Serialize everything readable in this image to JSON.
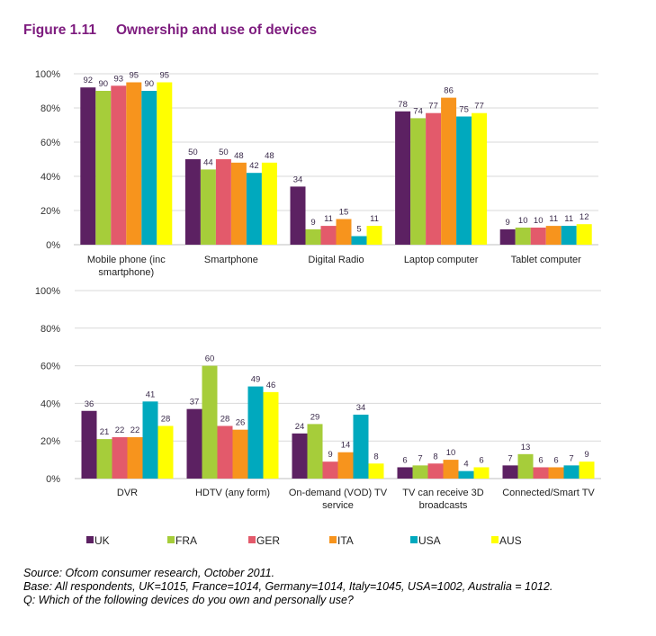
{
  "figure": {
    "number": "Figure 1.11",
    "title": "Ownership and use of devices"
  },
  "chart_data": [
    {
      "type": "bar",
      "ylim": [
        0,
        100
      ],
      "yticks": [
        "0%",
        "20%",
        "40%",
        "60%",
        "80%",
        "100%"
      ],
      "grid": true,
      "categories": [
        [
          "Mobile phone (inc",
          "smartphone)"
        ],
        [
          "Smartphone"
        ],
        [
          "Digital Radio"
        ],
        [
          "Laptop computer"
        ],
        [
          "Tablet computer"
        ]
      ],
      "series": [
        {
          "name": "UK",
          "color": "#5c2162",
          "values": [
            92,
            50,
            34,
            78,
            9
          ]
        },
        {
          "name": "FRA",
          "color": "#a6cd3a",
          "values": [
            90,
            44,
            9,
            74,
            10
          ]
        },
        {
          "name": "GER",
          "color": "#e35a6b",
          "values": [
            93,
            50,
            11,
            77,
            10
          ]
        },
        {
          "name": "ITA",
          "color": "#f7941d",
          "values": [
            95,
            48,
            15,
            86,
            11
          ]
        },
        {
          "name": "USA",
          "color": "#00a9be",
          "values": [
            90,
            42,
            5,
            75,
            11
          ]
        },
        {
          "name": "AUS",
          "color": "#ffff00",
          "values": [
            95,
            48,
            11,
            77,
            12
          ]
        }
      ]
    },
    {
      "type": "bar",
      "ylim": [
        0,
        100
      ],
      "yticks": [
        "0%",
        "20%",
        "40%",
        "60%",
        "80%",
        "100%"
      ],
      "grid": true,
      "legend": "bottom",
      "categories": [
        [
          "DVR"
        ],
        [
          "HDTV (any form)"
        ],
        [
          "On-demand (VOD) TV",
          "service"
        ],
        [
          "TV can receive 3D",
          "broadcasts"
        ],
        [
          "Connected/Smart TV"
        ]
      ],
      "series": [
        {
          "name": "UK",
          "color": "#5c2162",
          "values": [
            36,
            37,
            24,
            6,
            7
          ]
        },
        {
          "name": "FRA",
          "color": "#a6cd3a",
          "values": [
            21,
            60,
            29,
            7,
            13
          ]
        },
        {
          "name": "GER",
          "color": "#e35a6b",
          "values": [
            22,
            28,
            9,
            8,
            6
          ]
        },
        {
          "name": "ITA",
          "color": "#f7941d",
          "values": [
            22,
            26,
            14,
            10,
            6
          ]
        },
        {
          "name": "USA",
          "color": "#00a9be",
          "values": [
            41,
            49,
            34,
            4,
            7
          ]
        },
        {
          "name": "AUS",
          "color": "#ffff00",
          "values": [
            28,
            46,
            8,
            6,
            9
          ]
        }
      ]
    }
  ],
  "notes": {
    "source": "Source: Ofcom consumer research, October 2011.",
    "base": "Base: All respondents, UK=1015, France=1014, Germany=1014, Italy=1045, USA=1002, Australia = 1012.",
    "question": "Q: Which of the following devices do you own and personally use?"
  }
}
